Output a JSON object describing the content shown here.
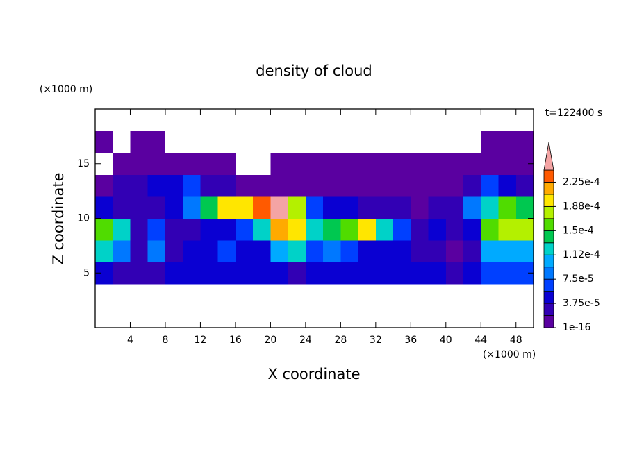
{
  "chart_data": {
    "type": "contour",
    "title": "density of cloud",
    "x_label": "X coordinate",
    "y_label": "Z coordinate",
    "x_unit": "(×1000 m)",
    "y_unit": "(×1000 m)",
    "annotation": "t=122400 s",
    "x": [
      1,
      3,
      5,
      7,
      9,
      11,
      13,
      15,
      17,
      19,
      21,
      23,
      25,
      27,
      29,
      31,
      33,
      35,
      37,
      39,
      41,
      43,
      45,
      47,
      49
    ],
    "y": [
      1,
      3,
      5,
      7,
      9,
      11,
      13,
      15,
      17,
      19
    ],
    "z": [
      [
        0,
        0,
        0,
        0,
        0,
        0,
        0,
        0,
        0,
        0,
        0,
        0,
        0,
        0,
        0,
        0,
        0,
        0,
        0,
        0,
        0,
        0,
        0,
        0,
        0
      ],
      [
        0,
        0,
        0,
        0,
        0,
        0,
        0,
        0,
        0,
        0,
        0,
        0,
        0,
        0,
        0,
        0,
        0,
        0,
        0,
        0,
        0,
        0,
        0,
        0,
        0
      ],
      [
        4e-05,
        3e-05,
        2e-05,
        2e-05,
        4e-05,
        5e-05,
        5e-05,
        5e-05,
        5e-05,
        4e-05,
        4e-05,
        3e-05,
        4e-05,
        5e-05,
        5e-05,
        5e-05,
        5e-05,
        5e-05,
        4e-05,
        4e-05,
        3e-05,
        4e-05,
        6e-05,
        6e-05,
        6e-05
      ],
      [
        0.00012,
        9e-05,
        2e-05,
        8e-05,
        3e-05,
        5e-05,
        5e-05,
        6e-05,
        5e-05,
        5e-05,
        0.0001,
        0.00012,
        6e-05,
        8e-05,
        6e-05,
        5e-05,
        4e-05,
        5e-05,
        3e-05,
        2e-05,
        1e-05,
        2e-05,
        0.0001,
        0.00011,
        0.00011
      ],
      [
        0.00016,
        0.00012,
        2e-05,
        7e-05,
        3e-05,
        3e-05,
        4e-05,
        5e-05,
        6e-05,
        0.00012,
        0.00022,
        0.0002,
        0.00012,
        0.00014,
        0.00016,
        0.00019,
        0.00013,
        6e-05,
        3e-05,
        4e-05,
        3e-05,
        5e-05,
        0.00015,
        0.00017,
        0.00017
      ],
      [
        4e-05,
        2e-05,
        2e-05,
        2e-05,
        4e-05,
        8e-05,
        0.00014,
        0.0002,
        0.0002,
        0.00023,
        0.00025,
        0.00018,
        6e-05,
        5e-05,
        4e-05,
        3e-05,
        3e-05,
        2e-05,
        1e-05,
        2e-05,
        3e-05,
        8e-05,
        0.00013,
        0.00015,
        0.00014
      ],
      [
        1e-05,
        2e-05,
        3e-05,
        4e-05,
        5e-05,
        6e-05,
        3e-05,
        2e-05,
        1e-05,
        1e-05,
        1e-05,
        1e-05,
        1e-05,
        1e-05,
        1e-05,
        1e-05,
        1e-05,
        1e-05,
        1e-05,
        1e-05,
        1e-05,
        3e-05,
        6e-05,
        5e-05,
        3e-05
      ],
      [
        0,
        1e-05,
        1e-05,
        1e-05,
        1e-05,
        1e-05,
        1e-05,
        1e-05,
        0,
        0,
        1e-05,
        1e-05,
        1e-05,
        1e-05,
        1e-05,
        1e-05,
        1e-05,
        1e-05,
        1e-05,
        1e-05,
        1e-05,
        1e-05,
        1e-05,
        1e-05,
        1e-05
      ],
      [
        1e-05,
        0,
        1e-05,
        1e-05,
        0,
        0,
        0,
        0,
        0,
        0,
        0,
        0,
        0,
        0,
        0,
        0,
        0,
        0,
        0,
        0,
        0,
        0,
        1e-05,
        1e-05,
        1e-05
      ],
      [
        0,
        0,
        0,
        0,
        0,
        0,
        0,
        0,
        0,
        0,
        0,
        0,
        0,
        0,
        0,
        0,
        0,
        0,
        0,
        0,
        0,
        0,
        0,
        0,
        0
      ]
    ],
    "xlim": [
      0,
      50
    ],
    "ylim": [
      0,
      20
    ],
    "xticks": [
      4,
      8,
      12,
      16,
      20,
      24,
      28,
      32,
      36,
      40,
      44,
      48
    ],
    "yticks": [
      5,
      10,
      15
    ],
    "colorbar": {
      "levels": [
        1e-16,
        1.875e-05,
        3.75e-05,
        5.625e-05,
        7.5e-05,
        9.375e-05,
        0.0001125,
        0.00013125,
        0.00015,
        0.00016875,
        0.0001875,
        0.00020625,
        0.000225,
        0.00024375
      ],
      "colors": [
        "#5a00a0",
        "#3200b4",
        "#0a00d2",
        "#0040ff",
        "#0078ff",
        "#00aaff",
        "#00d2c8",
        "#00c850",
        "#50dc00",
        "#b4f000",
        "#ffe600",
        "#ffaa00",
        "#ff5a00"
      ],
      "extend_color": "#f4a4a4",
      "ticks": [
        1e-16,
        {
          "value": 3.75e-05,
          "label": "3.75e-5"
        },
        {
          "value": 7.5e-05,
          "label": "7.5e-5"
        },
        {
          "value": 0.0001125,
          "label": "1.12e-4"
        },
        {
          "value": 0.00015,
          "label": "1.5e-4"
        },
        {
          "value": 0.0001875,
          "label": "1.88e-4"
        },
        {
          "value": 0.000225,
          "label": "2.25e-4"
        }
      ]
    }
  }
}
